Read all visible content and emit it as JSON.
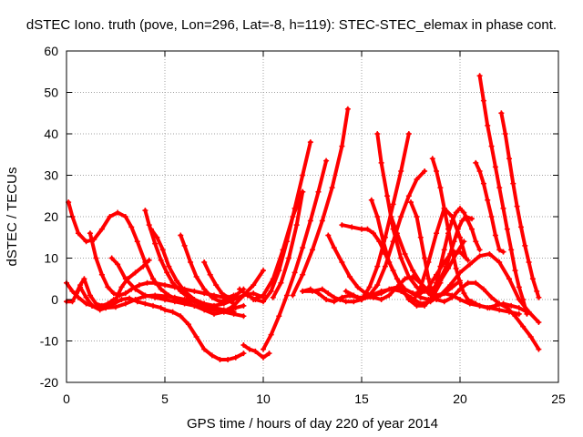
{
  "chart_data": {
    "type": "scatter",
    "title": "dSTEC Iono. truth (pove, Lon=296, Lat=-8, h=119): STEC-STEC_elemax in phase cont.",
    "xlabel": "GPS time / hours of day 220 of year 2014",
    "ylabel": "dSTEC  / TECUs",
    "xlim": [
      0,
      25
    ],
    "ylim": [
      -20,
      60
    ],
    "xticks": [
      "0",
      "5",
      "10",
      "15",
      "20",
      "25"
    ],
    "yticks": [
      "-20",
      "-10",
      "0",
      "10",
      "20",
      "30",
      "40",
      "50",
      "60"
    ],
    "grid": true,
    "legend": "none",
    "marker": "plus",
    "colors": {
      "series": "#ff0000"
    },
    "series": [
      {
        "x": [
          0.0,
          0.3,
          0.7,
          1.0,
          1.3,
          1.7,
          2.0,
          2.4,
          2.8,
          3.2,
          3.6,
          4.0,
          4.4,
          4.8,
          5.0,
          5.4,
          5.8,
          6.2,
          6.6,
          7.0,
          7.4,
          7.8,
          8.2,
          8.6,
          9.0
        ],
        "y": [
          -0.5,
          -0.5,
          3.0,
          0.5,
          -1.5,
          -2.5,
          -2.0,
          -1.0,
          0.0,
          0.3,
          -0.5,
          -1.0,
          -1.5,
          -2.0,
          -2.5,
          -3.0,
          -4.0,
          -6.0,
          -9.0,
          -12.0,
          -13.5,
          -14.5,
          -14.5,
          -14.0,
          -13.0
        ]
      },
      {
        "x": [
          0.0,
          0.3,
          0.6,
          1.0,
          1.3,
          1.6,
          2.0,
          2.5,
          3.0,
          3.5,
          4.0,
          4.5,
          5.0,
          5.5,
          6.0,
          6.5,
          7.0,
          7.5,
          8.0,
          8.5
        ],
        "y": [
          4.0,
          2.0,
          0.5,
          -1.0,
          -1.5,
          -2.0,
          -2.0,
          -1.8,
          -1.0,
          0.0,
          0.8,
          1.0,
          0.8,
          0.5,
          0.0,
          -0.5,
          -1.5,
          -2.0,
          -2.5,
          -3.0
        ]
      },
      {
        "x": [
          0.1,
          0.3,
          0.6,
          1.0,
          1.4,
          1.8,
          2.2,
          2.6,
          3.0,
          3.3,
          3.6,
          4.0,
          4.4,
          4.8,
          5.2,
          5.6,
          6.0,
          6.5,
          7.0,
          7.5,
          8.0,
          8.5,
          9.0,
          9.5,
          10.0
        ],
        "y": [
          23.5,
          20.0,
          16.0,
          14.0,
          14.5,
          17.0,
          20.0,
          21.0,
          20.0,
          17.5,
          14.0,
          9.0,
          5.0,
          2.5,
          1.0,
          0.0,
          -0.5,
          -1.5,
          -2.5,
          -3.5,
          -3.0,
          -1.5,
          1.0,
          3.5,
          7.0
        ]
      },
      {
        "x": [
          0.5,
          0.7,
          0.9,
          1.2,
          1.5,
          1.8,
          2.1,
          2.4
        ],
        "y": [
          1.5,
          3.5,
          5.0,
          1.0,
          -1.0,
          -1.5,
          -1.0,
          0.0
        ]
      },
      {
        "x": [
          1.2,
          1.5,
          1.8,
          2.1,
          2.4,
          2.7,
          3.0,
          3.3,
          3.7,
          4.1,
          4.5,
          5.0,
          5.5,
          6.0,
          6.5,
          7.0,
          7.5,
          8.0,
          8.5
        ],
        "y": [
          16.0,
          10.0,
          6.0,
          3.0,
          1.5,
          1.0,
          1.5,
          2.5,
          3.5,
          4.0,
          4.0,
          3.5,
          3.0,
          2.5,
          2.0,
          1.5,
          1.0,
          0.5,
          -1.0
        ]
      },
      {
        "x": [
          2.3,
          2.6,
          3.0,
          3.5,
          4.0,
          4.5,
          5.0,
          5.5,
          6.0,
          6.5,
          7.0,
          7.5,
          8.0,
          8.5,
          9.0
        ],
        "y": [
          10.0,
          8.5,
          5.0,
          2.5,
          1.0,
          0.5,
          0.0,
          -0.5,
          -1.0,
          -1.5,
          -2.0,
          -2.5,
          -3.0,
          -3.5,
          -4.0
        ]
      },
      {
        "x": [
          2.5,
          2.8,
          3.1,
          3.5,
          3.9,
          4.2
        ],
        "y": [
          0.0,
          3.0,
          5.0,
          6.5,
          8.0,
          9.5
        ]
      },
      {
        "x": [
          4.0,
          4.2,
          4.5,
          4.8,
          5.1,
          5.4,
          5.8,
          6.2,
          6.6,
          7.0,
          7.4,
          7.8,
          8.2,
          8.6,
          9.0
        ],
        "y": [
          21.5,
          18.0,
          13.5,
          9.5,
          6.5,
          4.0,
          2.0,
          0.5,
          -0.5,
          -1.5,
          -2.0,
          -2.5,
          -2.5,
          -2.0,
          -1.5
        ]
      },
      {
        "x": [
          4.3,
          4.6,
          4.9,
          5.2,
          5.6,
          6.0,
          6.5,
          7.0,
          7.5,
          8.0,
          8.5,
          9.0,
          9.5,
          10.0
        ],
        "y": [
          17.0,
          15.0,
          12.0,
          8.0,
          4.5,
          2.0,
          0.0,
          -1.0,
          -1.5,
          -1.0,
          0.0,
          1.0,
          1.5,
          0.5
        ]
      },
      {
        "x": [
          5.8,
          6.0,
          6.3,
          6.6,
          7.0,
          7.4,
          7.8,
          8.2,
          8.6,
          9.0
        ],
        "y": [
          15.5,
          13.0,
          9.0,
          5.5,
          2.5,
          0.5,
          -0.5,
          0.0,
          1.0,
          2.5
        ]
      },
      {
        "x": [
          7.0,
          7.3,
          7.6,
          7.9,
          8.2,
          8.5
        ],
        "y": [
          9.0,
          6.0,
          3.5,
          1.5,
          0.5,
          1.0
        ]
      },
      {
        "x": [
          9.0,
          9.3,
          9.6,
          10.0,
          10.3
        ],
        "y": [
          -11.0,
          -12.0,
          -12.5,
          -14.0,
          -13.0
        ]
      },
      {
        "x": [
          8.8,
          9.2,
          9.6,
          10.0,
          10.4,
          10.8,
          11.2,
          11.6,
          12.0,
          12.4
        ],
        "y": [
          2.5,
          1.0,
          0.0,
          -0.5,
          2.0,
          7.0,
          14.0,
          22.0,
          30.0,
          38.0
        ]
      },
      {
        "x": [
          10.0,
          10.4,
          10.8,
          11.2,
          11.6,
          12.0,
          12.4,
          12.8,
          13.2
        ],
        "y": [
          -12.0,
          -8.5,
          -4.0,
          1.0,
          6.5,
          12.5,
          19.0,
          26.0,
          33.5
        ]
      },
      {
        "x": [
          9.5,
          10.0,
          10.5,
          11.0,
          11.5,
          12.0
        ],
        "y": [
          0.0,
          1.0,
          5.0,
          12.0,
          20.0,
          26.0
        ]
      },
      {
        "x": [
          10.5,
          10.9,
          11.3,
          11.7,
          12.0
        ],
        "y": [
          0.5,
          4.0,
          10.0,
          18.0,
          26.0
        ]
      },
      {
        "x": [
          11.5,
          12.0,
          12.5,
          13.0,
          13.5,
          14.0,
          14.3
        ],
        "y": [
          1.0,
          6.0,
          12.0,
          19.0,
          27.0,
          37.0,
          46.0
        ]
      },
      {
        "x": [
          12.0,
          12.5,
          13.0,
          13.3,
          13.6,
          13.9,
          14.2,
          14.6,
          15.0,
          15.5,
          16.0,
          16.5,
          17.0,
          17.5,
          18.0,
          18.5,
          19.0,
          19.5,
          20.0,
          20.5,
          21.0,
          21.5,
          22.0,
          22.5,
          23.0,
          23.5,
          24.0
        ],
        "y": [
          2.0,
          2.0,
          2.5,
          1.5,
          0.5,
          0.0,
          -0.5,
          -0.5,
          0.0,
          1.0,
          2.0,
          2.5,
          2.0,
          0.5,
          -1.0,
          -0.5,
          1.0,
          3.5,
          6.5,
          8.5,
          10.5,
          11.0,
          9.0,
          5.0,
          0.0,
          -3.0,
          -5.5
        ]
      },
      {
        "x": [
          12.0,
          12.4,
          12.8,
          13.2,
          13.6,
          14.0,
          14.4,
          14.8,
          15.2,
          15.6,
          16.0,
          16.4,
          16.8,
          17.2,
          17.6,
          18.0,
          18.4,
          18.8,
          19.2,
          19.6,
          20.0,
          20.4,
          20.8,
          21.2,
          21.6,
          22.0,
          22.4,
          22.8,
          23.2,
          23.6,
          24.0
        ],
        "y": [
          2.0,
          2.5,
          1.5,
          0.0,
          -0.5,
          0.5,
          1.0,
          0.5,
          0.5,
          0.5,
          0.0,
          1.0,
          3.0,
          5.0,
          5.5,
          4.0,
          1.5,
          0.0,
          -0.5,
          0.5,
          2.5,
          4.0,
          4.0,
          2.5,
          0.5,
          -1.0,
          -2.0,
          -4.0,
          -6.5,
          -9.0,
          -12.0
        ]
      },
      {
        "x": [
          13.3,
          13.6,
          14.0,
          14.4,
          14.8,
          15.2,
          15.6,
          16.0,
          16.4,
          16.8,
          17.2,
          17.6,
          18.0,
          18.4,
          18.8,
          19.2,
          19.6,
          20.0,
          20.5,
          21.0,
          21.5,
          22.0,
          22.5,
          23.0
        ],
        "y": [
          15.5,
          12.5,
          9.0,
          5.5,
          3.0,
          1.5,
          1.0,
          1.5,
          2.5,
          3.0,
          2.5,
          1.5,
          0.5,
          0.0,
          0.5,
          1.5,
          1.0,
          0.0,
          -1.0,
          -1.5,
          -2.0,
          -2.5,
          -3.0,
          -3.5
        ]
      },
      {
        "x": [
          14.0,
          14.5,
          15.0,
          15.3,
          15.6,
          15.9,
          16.2,
          16.6,
          17.0,
          17.4,
          17.8,
          18.2,
          18.6,
          19.0
        ],
        "y": [
          18.0,
          17.5,
          17.0,
          17.0,
          16.0,
          14.0,
          11.0,
          7.0,
          3.0,
          0.0,
          -1.5,
          -1.5,
          0.5,
          4.0
        ]
      },
      {
        "x": [
          15.5,
          15.8,
          16.1,
          16.4,
          16.8,
          17.2,
          17.6,
          18.0,
          18.4,
          18.8,
          19.2,
          19.6,
          20.0,
          20.4
        ],
        "y": [
          24.0,
          20.0,
          14.0,
          9.0,
          5.0,
          2.5,
          1.5,
          1.5,
          3.0,
          6.0,
          9.0,
          11.5,
          11.5,
          9.5
        ]
      },
      {
        "x": [
          15.8,
          16.0,
          16.3,
          16.6,
          17.0,
          17.4,
          17.8,
          18.2,
          18.6,
          19.0,
          19.4,
          19.8,
          20.2
        ],
        "y": [
          40.0,
          33.0,
          25.0,
          17.0,
          10.0,
          5.5,
          3.0,
          2.0,
          2.5,
          4.5,
          7.5,
          11.0,
          14.0
        ]
      },
      {
        "x": [
          14.2,
          14.6,
          15.0,
          15.4,
          15.8,
          16.2,
          16.6,
          17.0,
          17.4,
          17.8,
          18.2
        ],
        "y": [
          2.0,
          1.0,
          0.0,
          1.0,
          3.5,
          8.0,
          14.0,
          20.0,
          25.0,
          29.0,
          31.0
        ]
      },
      {
        "x": [
          15.0,
          15.4,
          15.8,
          16.2,
          16.6,
          17.0,
          17.4
        ],
        "y": [
          0.0,
          3.0,
          8.0,
          15.0,
          23.0,
          31.0,
          40.0
        ]
      },
      {
        "x": [
          16.5,
          16.8,
          17.2,
          17.6,
          18.0,
          18.4,
          18.8,
          19.2,
          19.6,
          20.0
        ],
        "y": [
          20.0,
          16.0,
          11.0,
          7.0,
          4.0,
          2.0,
          1.0,
          1.5,
          3.0,
          4.5
        ]
      },
      {
        "x": [
          17.5,
          17.8,
          18.0,
          18.2,
          18.4,
          18.6
        ],
        "y": [
          23.5,
          20.0,
          15.0,
          10.0,
          5.0,
          1.0
        ]
      },
      {
        "x": [
          17.6,
          18.0,
          18.4,
          18.8,
          19.2,
          19.6,
          20.0,
          20.3
        ],
        "y": [
          -0.5,
          3.0,
          9.0,
          16.0,
          22.0,
          20.0,
          15.0,
          10.0
        ]
      },
      {
        "x": [
          18.6,
          18.8,
          19.0,
          19.2,
          19.4,
          19.6,
          19.8,
          20.0,
          20.2,
          20.4,
          20.6,
          20.8,
          21.0,
          21.4,
          21.8,
          22.2,
          22.6,
          23.0,
          23.4
        ],
        "y": [
          34.0,
          31.0,
          27.0,
          22.0,
          17.0,
          12.0,
          7.5,
          4.0,
          1.5,
          0.0,
          -0.5,
          -1.0,
          -1.5,
          -2.0,
          -1.5,
          -1.0,
          -1.5,
          -2.0,
          -3.0
        ]
      },
      {
        "x": [
          18.6,
          18.8,
          19.0,
          19.2,
          19.4,
          19.6,
          19.8,
          20.0,
          20.2,
          20.4,
          20.6,
          20.8,
          21.0
        ],
        "y": [
          1.5,
          4.0,
          8.0,
          12.0,
          16.0,
          19.0,
          21.0,
          22.0,
          21.0,
          19.0,
          17.0,
          14.0,
          12.0
        ]
      },
      {
        "x": [
          19.0,
          19.3,
          19.5,
          19.7,
          19.9,
          20.1,
          20.3,
          20.6
        ],
        "y": [
          5.0,
          8.0,
          11.0,
          14.0,
          17.0,
          19.0,
          20.0,
          19.5
        ]
      },
      {
        "x": [
          20.8,
          21.0,
          21.2,
          21.4,
          21.6,
          21.8,
          22.0,
          22.2
        ],
        "y": [
          33.0,
          31.0,
          28.0,
          24.0,
          20.0,
          15.5,
          12.0,
          11.5
        ]
      },
      {
        "x": [
          21.0,
          21.2,
          21.4,
          21.6,
          21.8,
          22.0,
          22.2,
          22.4,
          22.6,
          22.8,
          23.0,
          23.2,
          23.4
        ],
        "y": [
          54.0,
          48.0,
          42.0,
          37.0,
          32.0,
          27.0,
          22.0,
          17.0,
          12.0,
          7.0,
          3.0,
          0.0,
          -3.5
        ]
      },
      {
        "x": [
          22.1,
          22.3,
          22.5,
          22.7,
          22.9,
          23.1,
          23.3,
          23.5,
          23.7,
          23.9,
          24.0
        ],
        "y": [
          45.0,
          40.0,
          34.0,
          28.0,
          22.5,
          17.5,
          13.0,
          9.0,
          5.0,
          2.0,
          0.5
        ]
      }
    ]
  }
}
